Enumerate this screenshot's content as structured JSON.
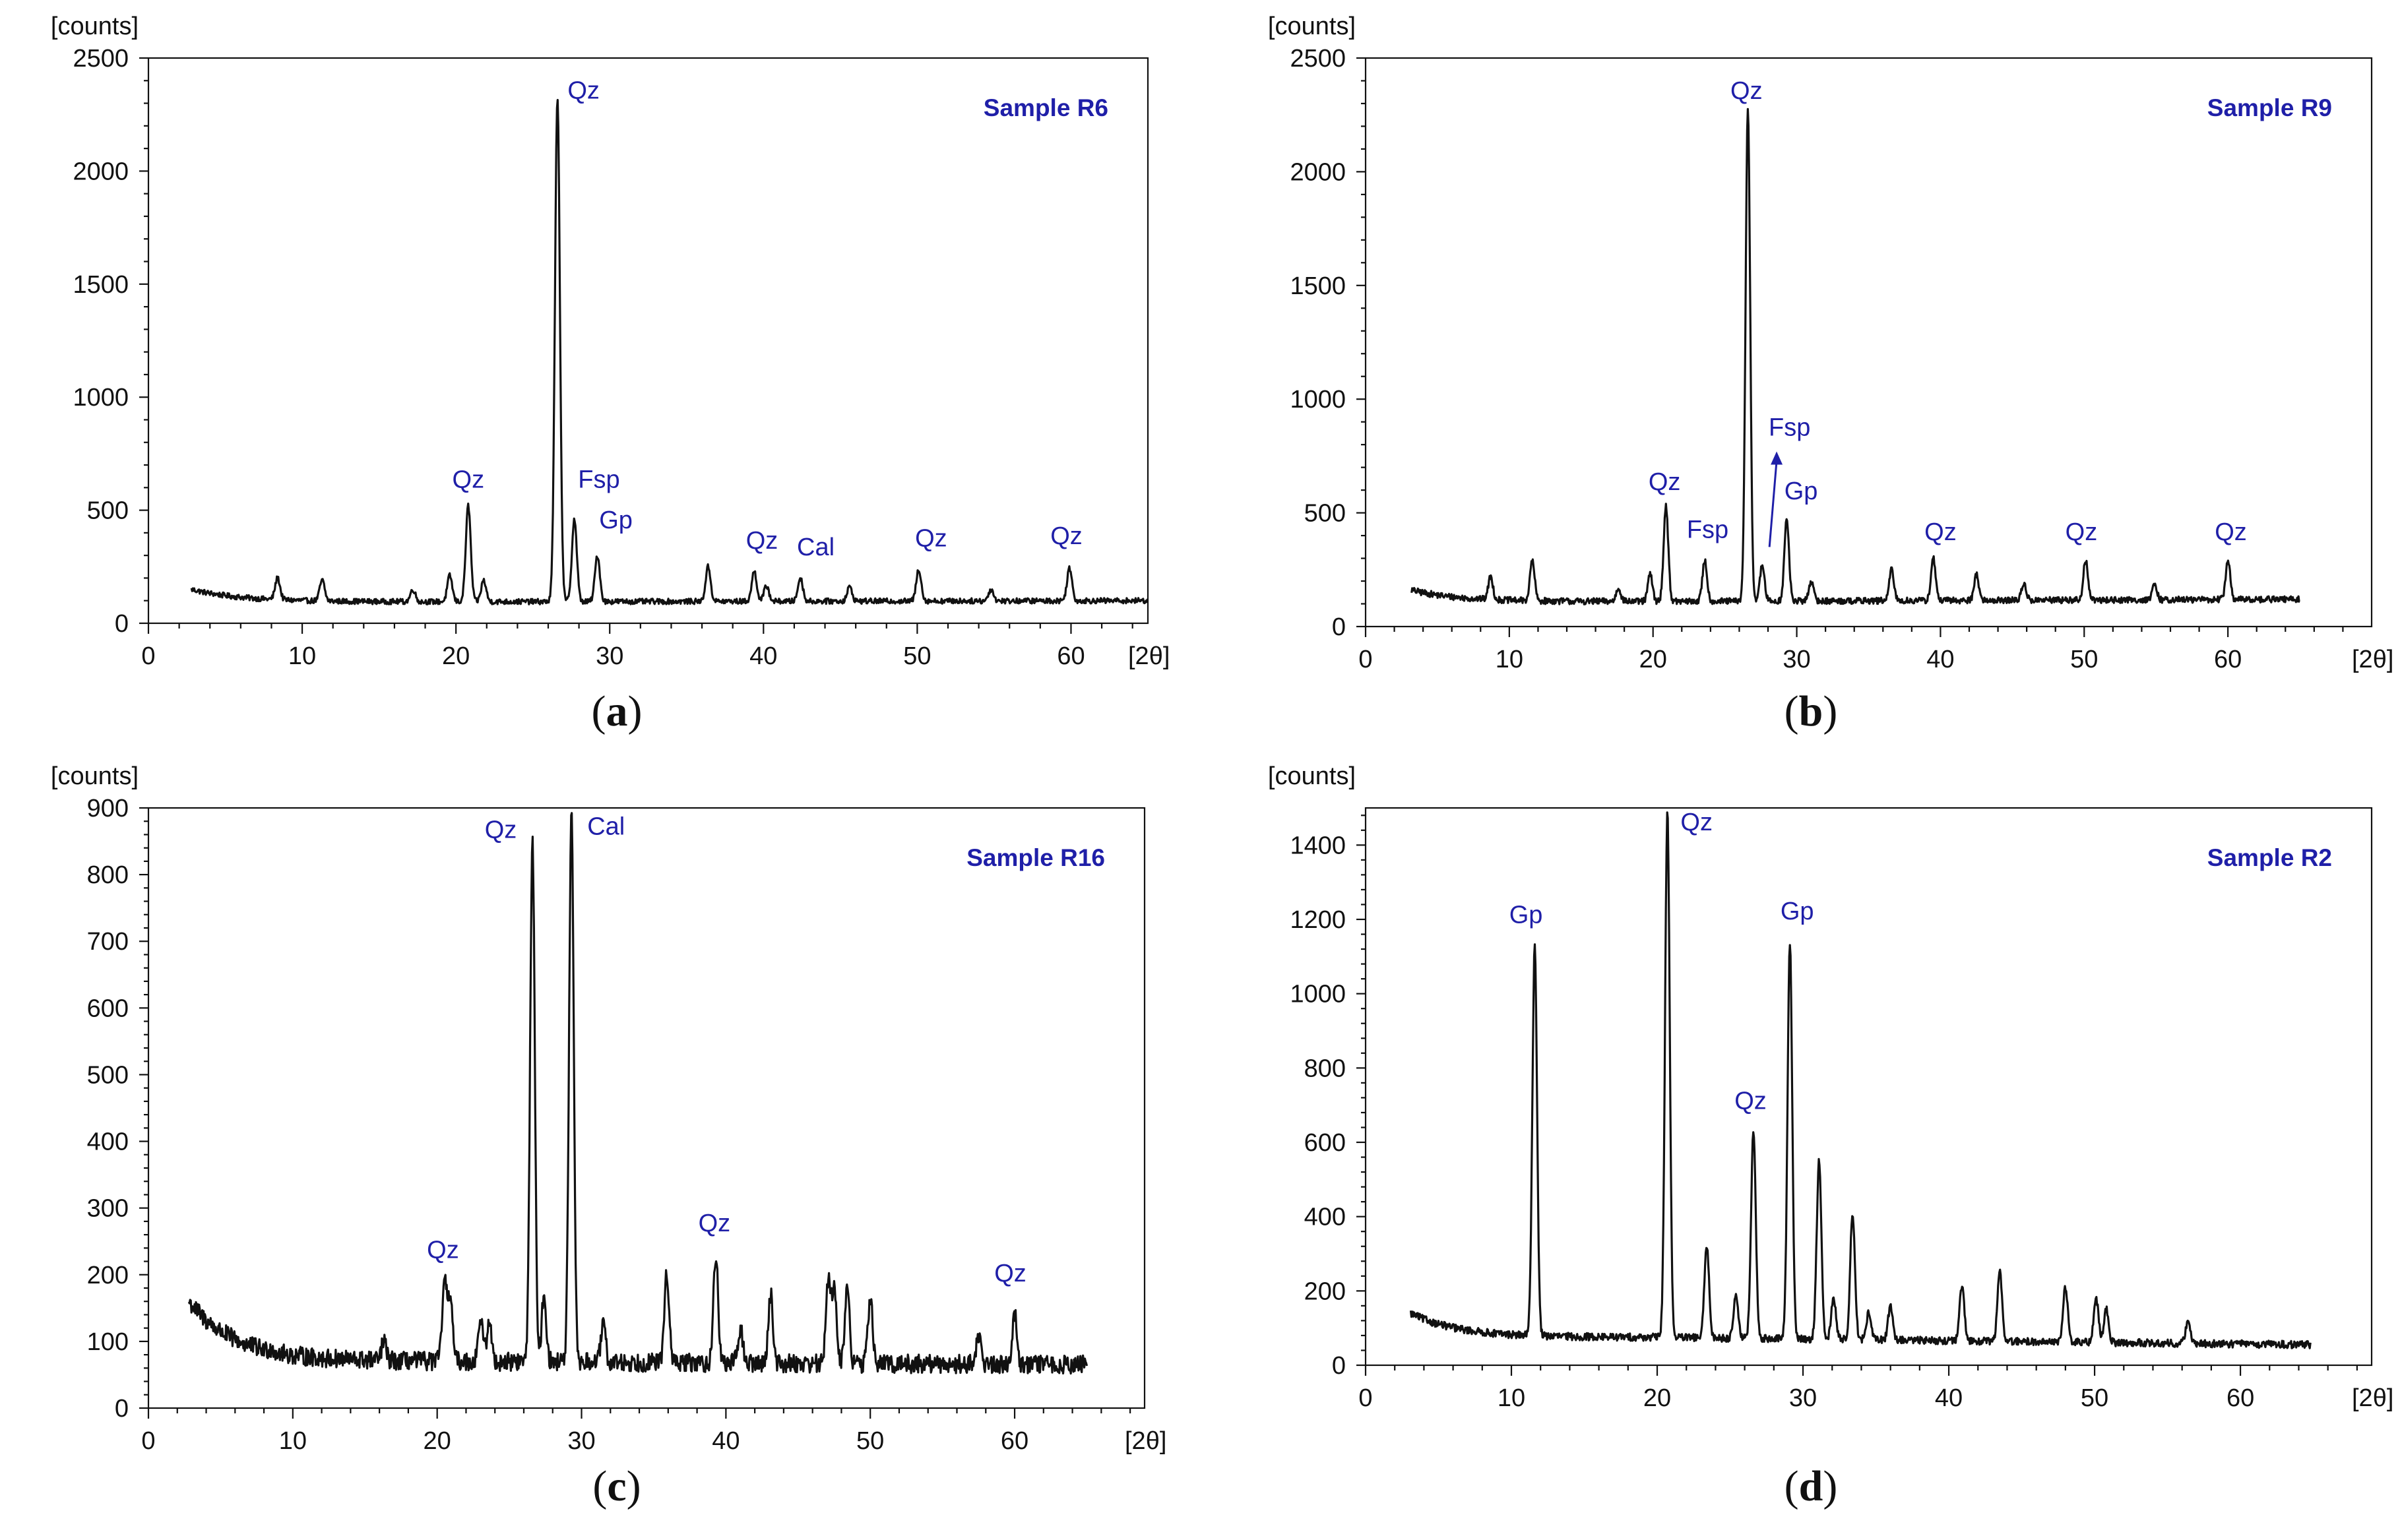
{
  "figure": {
    "accent_color": "#1f1fa8",
    "trace_color": "#111111"
  },
  "chart_data": [
    {
      "panel_label": "a",
      "type": "line",
      "title": "Sample R6",
      "xlabel": "[2θ]",
      "ylabel": "[counts]",
      "xlim": [
        0,
        65
      ],
      "ylim": [
        0,
        2500
      ],
      "xticks": [
        0,
        10,
        20,
        30,
        40,
        50,
        60
      ],
      "yticks": [
        0,
        500,
        1000,
        1500,
        2000,
        2500
      ],
      "x_range": [
        2.8,
        65
      ],
      "baseline": {
        "start": 150,
        "mid": 95,
        "end": 100
      },
      "noise": 12,
      "peaks": [
        {
          "x": 8.4,
          "y": 200
        },
        {
          "x": 11.3,
          "y": 190
        },
        {
          "x": 17.2,
          "y": 150
        },
        {
          "x": 19.6,
          "y": 210
        },
        {
          "x": 20.8,
          "y": 520
        },
        {
          "x": 21.8,
          "y": 190
        },
        {
          "x": 26.6,
          "y": 2330
        },
        {
          "x": 27.7,
          "y": 460
        },
        {
          "x": 29.2,
          "y": 300
        },
        {
          "x": 36.4,
          "y": 250
        },
        {
          "x": 39.4,
          "y": 230
        },
        {
          "x": 40.2,
          "y": 165
        },
        {
          "x": 42.4,
          "y": 200
        },
        {
          "x": 45.6,
          "y": 160
        },
        {
          "x": 50.1,
          "y": 240
        },
        {
          "x": 54.8,
          "y": 150
        },
        {
          "x": 59.9,
          "y": 245
        }
      ],
      "annotations": [
        {
          "text": "Qz",
          "x": 20.8,
          "y": 600
        },
        {
          "text": "Qz",
          "x": 28.3,
          "y": 2320
        },
        {
          "text": "Fsp",
          "x": 29.3,
          "y": 600
        },
        {
          "text": "Gp",
          "x": 30.4,
          "y": 420
        },
        {
          "text": "Qz",
          "x": 39.9,
          "y": 330
        },
        {
          "text": "Cal",
          "x": 43.4,
          "y": 300
        },
        {
          "text": "Qz",
          "x": 50.9,
          "y": 340
        },
        {
          "text": "Qz",
          "x": 59.7,
          "y": 350
        }
      ]
    },
    {
      "panel_label": "b",
      "type": "line",
      "title": "Sample R9",
      "xlabel": "[2θ]",
      "ylabel": "[counts]",
      "xlim": [
        0,
        70
      ],
      "ylim": [
        0,
        2500
      ],
      "xticks": [
        0,
        10,
        20,
        30,
        40,
        50,
        60
      ],
      "yticks": [
        0,
        500,
        1000,
        1500,
        2000,
        2500
      ],
      "x_range": [
        3.2,
        65
      ],
      "baseline": {
        "start": 160,
        "mid": 110,
        "end": 120
      },
      "noise": 14,
      "peaks": [
        {
          "x": 8.7,
          "y": 220
        },
        {
          "x": 11.6,
          "y": 290
        },
        {
          "x": 17.6,
          "y": 170
        },
        {
          "x": 19.8,
          "y": 230
        },
        {
          "x": 20.9,
          "y": 530
        },
        {
          "x": 23.6,
          "y": 290
        },
        {
          "x": 26.6,
          "y": 2280
        },
        {
          "x": 27.6,
          "y": 270
        },
        {
          "x": 29.3,
          "y": 470
        },
        {
          "x": 31.0,
          "y": 200
        },
        {
          "x": 36.6,
          "y": 250
        },
        {
          "x": 39.5,
          "y": 300
        },
        {
          "x": 42.5,
          "y": 230
        },
        {
          "x": 45.8,
          "y": 190
        },
        {
          "x": 50.1,
          "y": 290
        },
        {
          "x": 54.9,
          "y": 180
        },
        {
          "x": 60.0,
          "y": 290
        }
      ],
      "annotations": [
        {
          "text": "Qz",
          "x": 20.8,
          "y": 600
        },
        {
          "text": "Qz",
          "x": 26.5,
          "y": 2320
        },
        {
          "text": "Fsp",
          "x": 23.8,
          "y": 390
        },
        {
          "text": "Fsp",
          "x": 29.5,
          "y": 840
        },
        {
          "text": "Gp",
          "x": 30.3,
          "y": 560
        },
        {
          "text": "Qz",
          "x": 40.0,
          "y": 380
        },
        {
          "text": "Qz",
          "x": 49.8,
          "y": 380
        },
        {
          "text": "Qz",
          "x": 60.2,
          "y": 380
        }
      ],
      "arrow": {
        "from": [
          28.1,
          350
        ],
        "to": [
          28.6,
          770
        ]
      }
    },
    {
      "panel_label": "c",
      "type": "line",
      "title": "Sample R16",
      "xlabel": "[2θ]",
      "ylabel": "[counts]",
      "xlim": [
        0,
        69
      ],
      "ylim": [
        0,
        900
      ],
      "xticks": [
        0,
        10,
        20,
        30,
        40,
        50,
        60
      ],
      "yticks": [
        0,
        100,
        200,
        300,
        400,
        500,
        600,
        700,
        800,
        900
      ],
      "x_range": [
        2.8,
        65
      ],
      "baseline": {
        "start": 160,
        "mid": 70,
        "end": 65
      },
      "noise": 14,
      "peaks": [
        {
          "x": 8.5,
          "y": 90
        },
        {
          "x": 16.3,
          "y": 100
        },
        {
          "x": 20.5,
          "y": 185
        },
        {
          "x": 20.9,
          "y": 170
        },
        {
          "x": 23.0,
          "y": 135
        },
        {
          "x": 23.6,
          "y": 130
        },
        {
          "x": 26.6,
          "y": 855
        },
        {
          "x": 27.4,
          "y": 170
        },
        {
          "x": 29.3,
          "y": 890
        },
        {
          "x": 31.5,
          "y": 125
        },
        {
          "x": 35.9,
          "y": 205
        },
        {
          "x": 39.3,
          "y": 230
        },
        {
          "x": 41.0,
          "y": 120
        },
        {
          "x": 43.1,
          "y": 170
        },
        {
          "x": 47.1,
          "y": 195
        },
        {
          "x": 47.5,
          "y": 175
        },
        {
          "x": 48.4,
          "y": 180
        },
        {
          "x": 50.0,
          "y": 165
        },
        {
          "x": 57.5,
          "y": 110
        },
        {
          "x": 60.0,
          "y": 145
        }
      ],
      "annotations": [
        {
          "text": "Qz",
          "x": 20.4,
          "y": 225
        },
        {
          "text": "Qz",
          "x": 24.4,
          "y": 855
        },
        {
          "text": "Cal",
          "x": 31.7,
          "y": 860
        },
        {
          "text": "Qz",
          "x": 39.2,
          "y": 265
        },
        {
          "text": "Qz",
          "x": 59.7,
          "y": 190
        }
      ]
    },
    {
      "panel_label": "d",
      "type": "line",
      "title": "Sample R2",
      "xlabel": "[2θ]",
      "ylabel": "[counts]",
      "xlim": [
        0,
        69
      ],
      "ylim": [
        0,
        1500
      ],
      "xticks": [
        0,
        10,
        20,
        30,
        40,
        50,
        60
      ],
      "yticks": [
        0,
        200,
        400,
        600,
        800,
        1000,
        1200,
        1400
      ],
      "x_range": [
        3.1,
        64.8
      ],
      "baseline": {
        "start": 140,
        "mid": 75,
        "end": 55
      },
      "noise": 10,
      "peaks": [
        {
          "x": 11.6,
          "y": 1130
        },
        {
          "x": 20.7,
          "y": 1490
        },
        {
          "x": 23.4,
          "y": 320
        },
        {
          "x": 25.4,
          "y": 190
        },
        {
          "x": 26.6,
          "y": 630
        },
        {
          "x": 29.1,
          "y": 1140
        },
        {
          "x": 31.1,
          "y": 550
        },
        {
          "x": 32.1,
          "y": 180
        },
        {
          "x": 33.4,
          "y": 410
        },
        {
          "x": 34.5,
          "y": 140
        },
        {
          "x": 36.0,
          "y": 160
        },
        {
          "x": 40.9,
          "y": 210
        },
        {
          "x": 43.5,
          "y": 250
        },
        {
          "x": 48.0,
          "y": 210
        },
        {
          "x": 50.1,
          "y": 180
        },
        {
          "x": 50.8,
          "y": 150
        },
        {
          "x": 56.4,
          "y": 115
        }
      ],
      "annotations": [
        {
          "text": "Gp",
          "x": 11.0,
          "y": 1190
        },
        {
          "text": "Qz",
          "x": 22.7,
          "y": 1440
        },
        {
          "text": "Qz",
          "x": 26.4,
          "y": 690
        },
        {
          "text": "Gp",
          "x": 29.6,
          "y": 1200
        }
      ]
    }
  ]
}
